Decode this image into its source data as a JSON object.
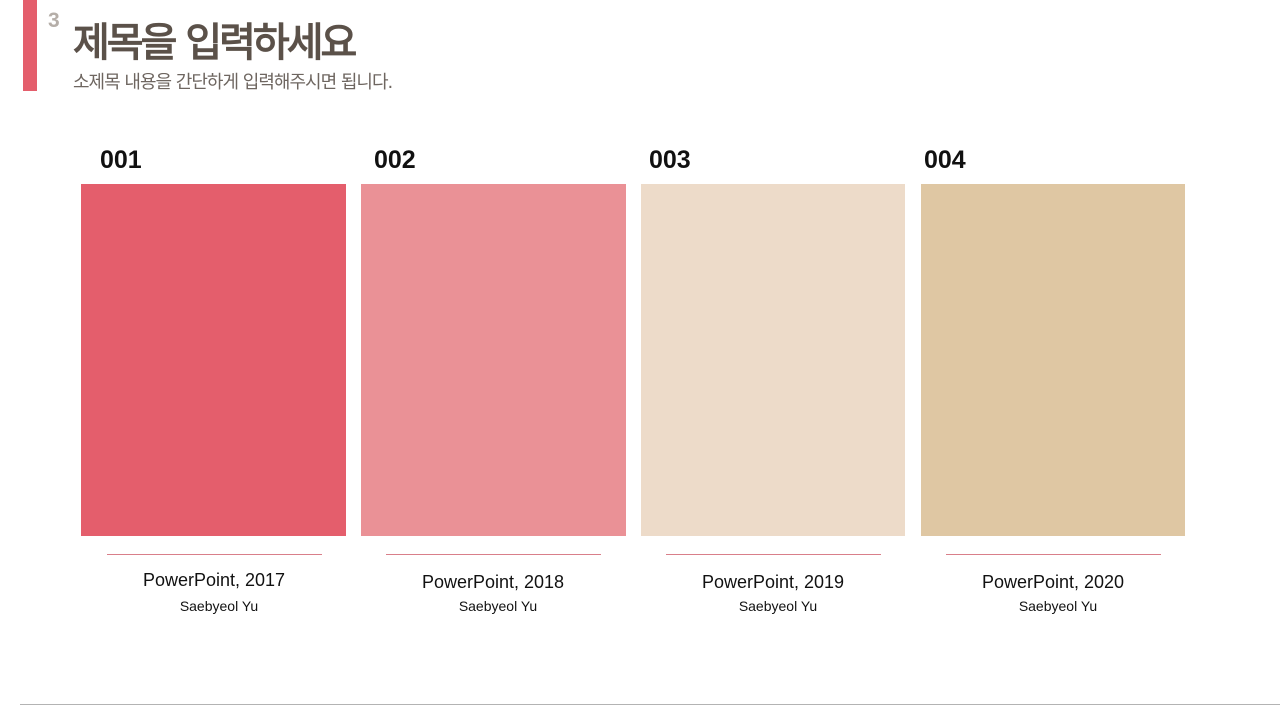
{
  "slide": {
    "number": "3",
    "title": "제목을 입력하세요",
    "subtitle": "소제목 내용을 간단하게 입력해주시면 됩니다.",
    "accent_color": "#e45e6c",
    "divider_color": "#d97f8a"
  },
  "cards": [
    {
      "number": "001",
      "color": "#e45e6c",
      "caption": "PowerPoint, 2017",
      "author": "Saebyeol Yu"
    },
    {
      "number": "002",
      "color": "#ea9196",
      "caption": "PowerPoint, 2018",
      "author": "Saebyeol Yu"
    },
    {
      "number": "003",
      "color": "#eddbc9",
      "caption": "PowerPoint, 2019",
      "author": "Saebyeol Yu"
    },
    {
      "number": "004",
      "color": "#dfc7a3",
      "caption": "PowerPoint, 2020",
      "author": "Saebyeol Yu"
    }
  ]
}
